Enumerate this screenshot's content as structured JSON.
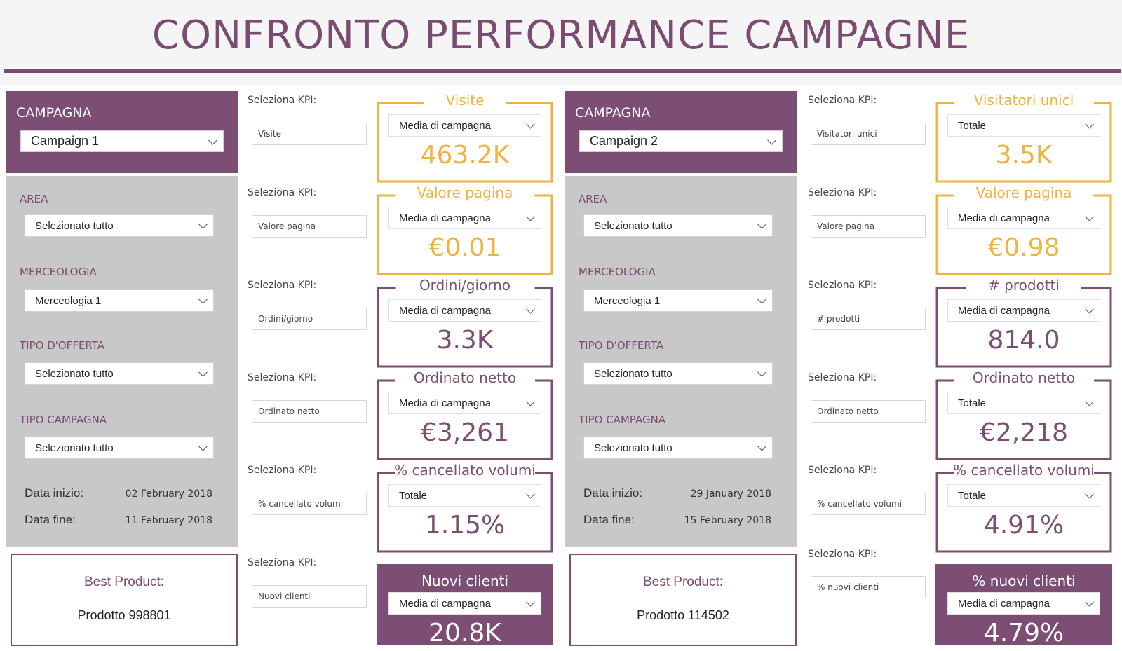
{
  "title": "CONFRONTO PERFORMANCE CAMPAGNE",
  "colors": {
    "brand": "#7d4e74",
    "gold": "#f0b43c",
    "filter_bg": "#c8c8c8"
  },
  "left": {
    "campaign_label": "CAMPAGNA",
    "campaign": "Campaign 1",
    "filters": {
      "area_label": "AREA",
      "area": "Selezionato tutto",
      "merceologia_label": "MERCEOLOGIA",
      "merceologia": "Merceologia 1",
      "offerta_label": "TIPO D'OFFERTA",
      "offerta": "Selezionato tutto",
      "tipo_label": "TIPO CAMPAGNA",
      "tipo": "Selezionato tutto"
    },
    "date_start_label": "Data inizio:",
    "date_start": "02 February 2018",
    "date_end_label": "Data fine:",
    "date_end": "11 February 2018",
    "best_label": "Best Product:",
    "best_value": "Prodotto 998801",
    "kpis": [
      {
        "sel_label": "Seleziona KPI:",
        "sel": "Visite",
        "title": "Visite",
        "agg": "Media di campagna",
        "value": "463.2K",
        "style": "gold"
      },
      {
        "sel_label": "Seleziona KPI:",
        "sel": "Valore pagina",
        "title": "Valore pagina",
        "agg": "Media di campagna",
        "value": "€0.01",
        "style": "gold"
      },
      {
        "sel_label": "Seleziona KPI:",
        "sel": "Ordini/giorno",
        "title": "Ordini/giorno",
        "agg": "Media di campagna",
        "value": "3.3K",
        "style": "purple"
      },
      {
        "sel_label": "Seleziona KPI:",
        "sel": "Ordinato netto",
        "title": "Ordinato netto",
        "agg": "Media di campagna",
        "value": "€3,261",
        "style": "purple"
      },
      {
        "sel_label": "Seleziona KPI:",
        "sel": "% cancellato volumi",
        "title": "% cancellato volumi",
        "agg": "Totale",
        "value": "1.15%",
        "style": "purple"
      },
      {
        "sel_label": "Seleziona KPI:",
        "sel": "Nuovi clienti",
        "title": "Nuovi clienti",
        "agg": "Media di campagna",
        "value": "20.8K",
        "style": "filled"
      }
    ]
  },
  "right": {
    "campaign_label": "CAMPAGNA",
    "campaign": "Campaign 2",
    "filters": {
      "area_label": "AREA",
      "area": "Selezionato tutto",
      "merceologia_label": "MERCEOLOGIA",
      "merceologia": "Merceologia 1",
      "offerta_label": "TIPO D'OFFERTA",
      "offerta": "Selezionato tutto",
      "tipo_label": "TIPO CAMPAGNA",
      "tipo": "Selezionato tutto"
    },
    "date_start_label": "Data inizio:",
    "date_start": "29 January 2018",
    "date_end_label": "Data fine:",
    "date_end": "15 February 2018",
    "best_label": "Best Product:",
    "best_value": "Prodotto 114502",
    "kpis": [
      {
        "sel_label": "Seleziona KPI:",
        "sel": "Visitatori unici",
        "title": "Visitatori unici",
        "agg": "Totale",
        "value": "3.5K",
        "style": "gold"
      },
      {
        "sel_label": "Seleziona KPI:",
        "sel": "Valore pagina",
        "title": "Valore pagina",
        "agg": "Media di campagna",
        "value": "€0.98",
        "style": "gold"
      },
      {
        "sel_label": "Seleziona KPI:",
        "sel": "# prodotti",
        "title": "# prodotti",
        "agg": "Media di campagna",
        "value": "814.0",
        "style": "purple"
      },
      {
        "sel_label": "Seleziona KPI:",
        "sel": "Ordinato netto",
        "title": "Ordinato netto",
        "agg": "Totale",
        "value": "€2,218",
        "style": "purple"
      },
      {
        "sel_label": "Seleziona KPI:",
        "sel": "% cancellato volumi",
        "title": "% cancellato volumi",
        "agg": "Totale",
        "value": "4.91%",
        "style": "purple"
      },
      {
        "sel_label": "Seleziona KPI:",
        "sel": "% nuovi clienti",
        "title": "% nuovi clienti",
        "agg": "Media di campagna",
        "value": "4.79%",
        "style": "filled"
      }
    ]
  }
}
